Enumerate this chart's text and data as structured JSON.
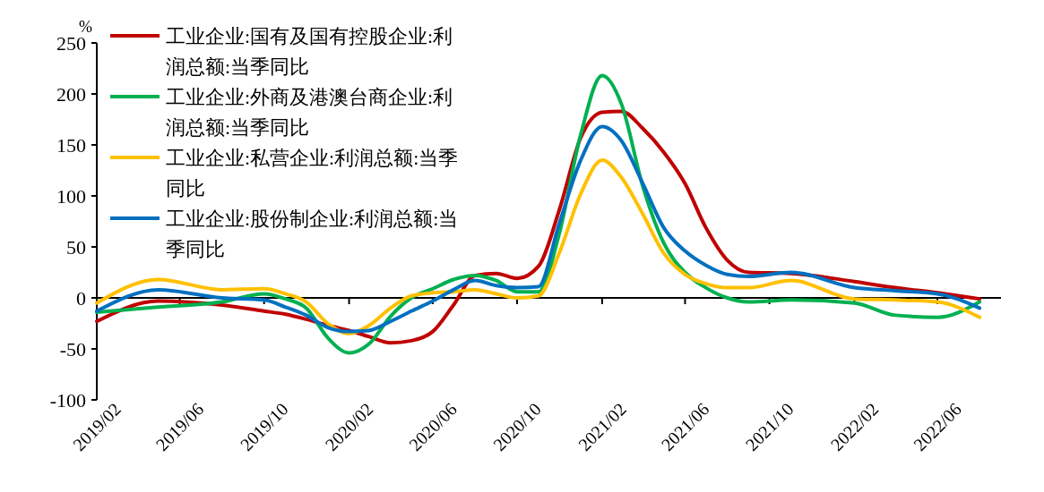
{
  "chart_data": {
    "type": "line",
    "ylabel": "%",
    "x": [
      "2019-02",
      "2019-05",
      "2019-08",
      "2019-10",
      "2019-11",
      "2019-12",
      "2020-01",
      "2020-02",
      "2020-03",
      "2020-04",
      "2020-05",
      "2020-06",
      "2020-07",
      "2020-08",
      "2020-09",
      "2020-10",
      "2020-11",
      "2020-12",
      "2021-01",
      "2021-02",
      "2021-03",
      "2021-04",
      "2021-05",
      "2021-06",
      "2021-07",
      "2021-08",
      "2021-09",
      "2021-11",
      "2022-02",
      "2022-04",
      "2022-06",
      "2022-08"
    ],
    "series": [
      {
        "name": "工业企业:国有及国有控股企业:利润总额:当季同比",
        "color": "#c00000",
        "values": [
          -23,
          -3,
          -7,
          -13,
          -16,
          -21,
          -27,
          -32,
          -38,
          -44,
          -42,
          -33,
          -7,
          22,
          24,
          19,
          31,
          86,
          157,
          182,
          183,
          166,
          143,
          112,
          69,
          37,
          25,
          24,
          16,
          10,
          5,
          -1
        ]
      },
      {
        "name": "工业企业:外商及港澳台商企业:利润总额:当季同比",
        "color": "#00b050",
        "values": [
          -14,
          -9,
          -4,
          4,
          -1,
          -10,
          -39,
          -54,
          -45,
          -18,
          0,
          9,
          18,
          22,
          17,
          6,
          6,
          63,
          160,
          218,
          190,
          109,
          54,
          25,
          10,
          0,
          -4,
          -2,
          -5,
          -17,
          -19,
          -4
        ]
      },
      {
        "name": "工业企业:私营企业:利润总额:当季同比",
        "color": "#ffc000",
        "values": [
          -5,
          18,
          8,
          9,
          4,
          -4,
          -25,
          -35,
          -27,
          -10,
          2,
          5,
          6,
          8,
          4,
          0,
          2,
          44,
          102,
          135,
          118,
          82,
          44,
          23,
          14,
          10,
          10,
          17,
          -1,
          -2,
          -4,
          -19
        ]
      },
      {
        "name": "工业企业:股份制企业:利润总额:当季同比",
        "color": "#0070c0",
        "values": [
          -13,
          8,
          0,
          -2,
          -9,
          -17,
          -29,
          -33,
          -32,
          -23,
          -13,
          -3,
          8,
          17,
          12,
          10,
          11,
          73,
          135,
          168,
          154,
          112,
          69,
          46,
          32,
          23,
          21,
          25,
          10,
          7,
          4,
          -10
        ]
      }
    ],
    "xlim": [
      "2019-02",
      "2022-09"
    ],
    "xticks": [
      {
        "value": "2019-02",
        "label": "2019/02"
      },
      {
        "value": "2019-06",
        "label": "2019/06"
      },
      {
        "value": "2019-10",
        "label": "2019/10"
      },
      {
        "value": "2020-02",
        "label": "2020/02"
      },
      {
        "value": "2020-06",
        "label": "2020/06"
      },
      {
        "value": "2020-10",
        "label": "2020/10"
      },
      {
        "value": "2021-02",
        "label": "2021/02"
      },
      {
        "value": "2021-06",
        "label": "2021/06"
      },
      {
        "value": "2021-10",
        "label": "2021/10"
      },
      {
        "value": "2022-02",
        "label": "2022/02"
      },
      {
        "value": "2022-06",
        "label": "2022/06"
      }
    ],
    "ylim": [
      -100,
      250
    ],
    "yticks": [
      -100,
      -50,
      0,
      50,
      100,
      150,
      200,
      250
    ],
    "legend": "top left",
    "line_style": "solid"
  }
}
